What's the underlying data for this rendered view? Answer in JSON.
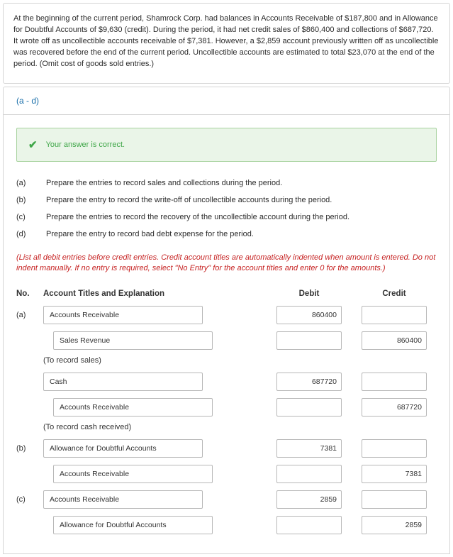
{
  "problem_text": "At the beginning of the current period, Shamrock Corp. had balances in Accounts Receivable of $187,800 and in Allowance for Doubtful Accounts of $9,630 (credit). During the period, it had net credit sales of $860,400 and collections of $687,720. It wrote off as uncollectible accounts receivable of $7,381. However, a $2,859 account previously written off as uncollectible was recovered before the end of the current period. Uncollectible accounts are estimated to total $23,070 at the end of the period. (Omit cost of goods sold entries.)",
  "tab_label": "(a - d)",
  "banner": {
    "icon": "✔",
    "text": "Your answer is correct."
  },
  "parts": [
    {
      "label": "(a)",
      "text": "Prepare the entries to record sales and collections during the period."
    },
    {
      "label": "(b)",
      "text": "Prepare the entry to record the write-off of uncollectible accounts during the period."
    },
    {
      "label": "(c)",
      "text": "Prepare the entries to record the recovery of the uncollectible account during the period."
    },
    {
      "label": "(d)",
      "text": "Prepare the entry to record bad debt expense for the period."
    }
  ],
  "instructions": "(List all debit entries before credit entries. Credit account titles are automatically indented when amount is entered. Do not indent manually. If no entry is required, select \"No Entry\" for the account titles and enter 0 for the amounts.)",
  "headers": {
    "no": "No.",
    "acct": "Account Titles and Explanation",
    "debit": "Debit",
    "credit": "Credit"
  },
  "rows": [
    {
      "type": "entry",
      "no": "(a)",
      "side": "debit",
      "account": "Accounts Receivable",
      "debit": "860400",
      "credit": ""
    },
    {
      "type": "entry",
      "no": "",
      "side": "credit",
      "account": "Sales Revenue",
      "debit": "",
      "credit": "860400"
    },
    {
      "type": "memo",
      "text": "(To record sales)"
    },
    {
      "type": "entry",
      "no": "",
      "side": "debit",
      "account": "Cash",
      "debit": "687720",
      "credit": ""
    },
    {
      "type": "entry",
      "no": "",
      "side": "credit",
      "account": "Accounts Receivable",
      "debit": "",
      "credit": "687720"
    },
    {
      "type": "memo",
      "text": "(To record cash received)"
    },
    {
      "type": "entry",
      "no": "(b)",
      "side": "debit",
      "account": "Allowance for Doubtful Accounts",
      "debit": "7381",
      "credit": ""
    },
    {
      "type": "entry",
      "no": "",
      "side": "credit",
      "account": "Accounts Receivable",
      "debit": "",
      "credit": "7381"
    },
    {
      "type": "entry",
      "no": "(c)",
      "side": "debit",
      "account": "Accounts Receivable",
      "debit": "2859",
      "credit": ""
    },
    {
      "type": "entry",
      "no": "",
      "side": "credit",
      "account": "Allowance for Doubtful Accounts",
      "debit": "",
      "credit": "2859"
    }
  ]
}
